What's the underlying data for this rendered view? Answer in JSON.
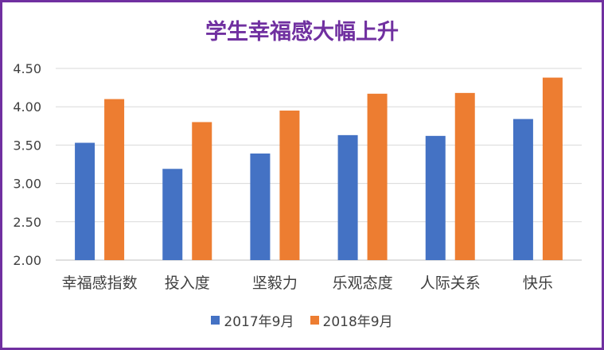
{
  "colors": {
    "frame": "#7030a0",
    "title": "#7030a0",
    "series_2017": "#4472c4",
    "series_2018": "#ed7d31",
    "grid": "#d9d9d9",
    "axis_text": "#404040"
  },
  "chart_data": {
    "type": "bar",
    "title": "学生幸福感大幅上升",
    "xlabel": "",
    "ylabel": "",
    "ylim": [
      2.0,
      4.5
    ],
    "yticks": [
      "2.00",
      "2.50",
      "3.00",
      "3.50",
      "4.00",
      "4.50"
    ],
    "grid": true,
    "legend_position": "bottom",
    "categories": [
      "幸福感指数",
      "投入度",
      "坚毅力",
      "乐观态度",
      "人际关系",
      "快乐"
    ],
    "series": [
      {
        "name": "2017年9月",
        "color": "#4472c4",
        "values": [
          3.53,
          3.19,
          3.39,
          3.63,
          3.62,
          3.84
        ]
      },
      {
        "name": "2018年9月",
        "color": "#ed7d31",
        "values": [
          4.1,
          3.8,
          3.95,
          4.17,
          4.18,
          4.38
        ]
      }
    ]
  }
}
